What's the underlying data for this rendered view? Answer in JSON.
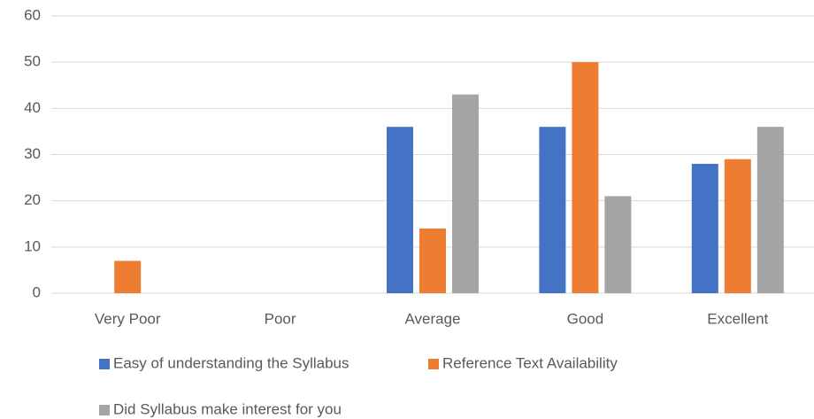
{
  "chart_data": {
    "type": "bar",
    "categories": [
      "Very Poor",
      "Poor",
      "Average",
      "Good",
      "Excellent"
    ],
    "series": [
      {
        "name": "Easy of understanding the Syllabus",
        "color": "#4472c4",
        "values": [
          0,
          0,
          36,
          36,
          28
        ]
      },
      {
        "name": "Reference Text Availability",
        "color": "#ed7d31",
        "values": [
          7,
          0,
          14,
          50,
          29
        ]
      },
      {
        "name": "Did Syllabus make interest for you",
        "color": "#a5a5a5",
        "values": [
          0,
          0,
          43,
          21,
          36
        ]
      }
    ],
    "ylim": [
      0,
      60
    ],
    "yticks": [
      0,
      10,
      20,
      30,
      40,
      50,
      60
    ],
    "grid": true,
    "legend": "bottom"
  }
}
